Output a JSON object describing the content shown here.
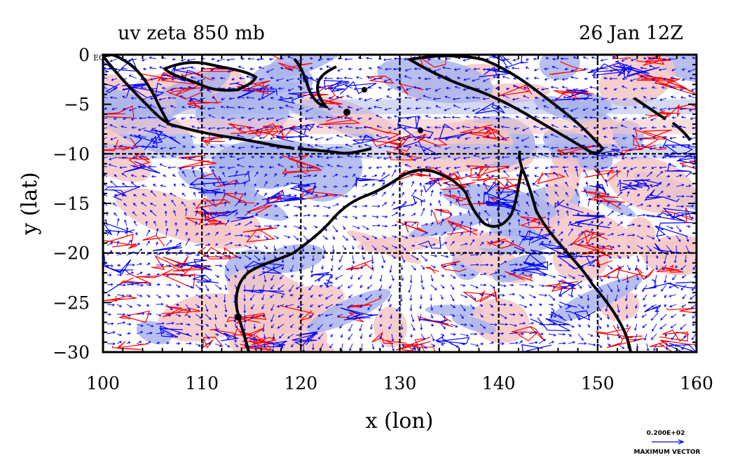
{
  "title_left": "uv zeta 850 mb",
  "title_right": "26 Jan 12Z",
  "x_axis": {
    "label": "x (lon)",
    "range": [
      100,
      160
    ],
    "ticks": [
      "100",
      "110",
      "120",
      "130",
      "140",
      "150",
      "160"
    ]
  },
  "y_axis": {
    "label": "y (lat)",
    "range": [
      -30,
      0
    ],
    "ticks": [
      "0",
      "−5",
      "−10",
      "−15",
      "−20",
      "−25",
      "−30"
    ]
  },
  "equator_label": "EQ",
  "gridlines_lon": [
    110,
    120,
    130,
    140,
    150
  ],
  "gridlines_lat": [
    -10,
    -20
  ],
  "reference_vector": {
    "value": "0.200E+02",
    "label": "MAXIMUM VECTOR"
  },
  "colors": {
    "positive_fill": "#f5c6c6",
    "negative_fill": "#a9b4ec",
    "positive_contour": "#ff0000",
    "negative_contour": "#0000ff",
    "vectors": "#0000ff",
    "coastline": "#000000"
  },
  "legend_note": ""
}
